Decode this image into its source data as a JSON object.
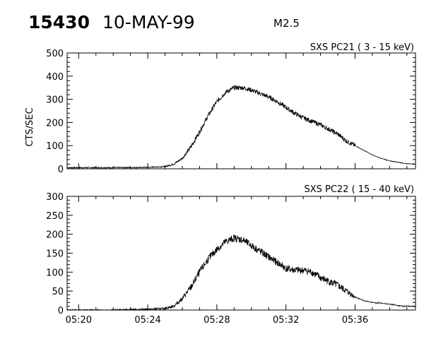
{
  "header": {
    "event_id": "15430",
    "date": "10-MAY-99",
    "flare_class": "M2.5"
  },
  "chart_data": [
    {
      "type": "line",
      "title": "SXS PC21  (  3 - 15 keV)",
      "ylabel": "CTS/SEC",
      "xlabel": "",
      "x_range": [
        "05:19:20",
        "05:39:30"
      ],
      "ylim": [
        0,
        500
      ],
      "y_ticks": [
        0,
        100,
        200,
        300,
        400,
        500
      ],
      "x_ticks": [
        "05:20",
        "05:24",
        "05:28",
        "05:32",
        "05:36"
      ],
      "noise_amplitude_dense_segment": 20,
      "dense_segment_end": "05:36:00",
      "series": [
        {
          "x": [
            "05:19:20",
            "05:20:00",
            "05:22:00",
            "05:24:00",
            "05:25:00",
            "05:25:30",
            "05:26:00",
            "05:26:30",
            "05:27:00",
            "05:27:30",
            "05:28:00",
            "05:28:30",
            "05:29:00",
            "05:29:30",
            "05:30:00",
            "05:30:30",
            "05:31:00",
            "05:31:30",
            "05:32:00",
            "05:32:30",
            "05:33:00",
            "05:33:30",
            "05:34:00",
            "05:34:30",
            "05:35:00",
            "05:35:30",
            "05:36:00",
            "05:36:30",
            "05:37:00",
            "05:37:30",
            "05:38:00",
            "05:38:30",
            "05:39:00",
            "05:39:30"
          ],
          "y": [
            5,
            5,
            5,
            6,
            10,
            20,
            45,
            95,
            160,
            230,
            290,
            330,
            350,
            350,
            340,
            325,
            310,
            290,
            265,
            240,
            220,
            205,
            190,
            170,
            150,
            120,
            100,
            80,
            60,
            45,
            35,
            28,
            22,
            20
          ]
        }
      ]
    },
    {
      "type": "line",
      "title": "SXS PC22  ( 15 - 40 keV)",
      "ylabel": "",
      "xlabel": "",
      "x_range": [
        "05:19:20",
        "05:39:30"
      ],
      "ylim": [
        0,
        300
      ],
      "y_ticks": [
        0,
        50,
        100,
        150,
        200,
        250,
        300
      ],
      "x_ticks": [
        "05:20",
        "05:24",
        "05:28",
        "05:32",
        "05:36"
      ],
      "noise_amplitude_dense_segment": 20,
      "dense_segment_end": "05:36:00",
      "series": [
        {
          "x": [
            "05:19:20",
            "05:20:00",
            "05:22:00",
            "05:24:00",
            "05:25:00",
            "05:25:30",
            "05:26:00",
            "05:26:30",
            "05:27:00",
            "05:27:30",
            "05:28:00",
            "05:28:30",
            "05:29:00",
            "05:29:30",
            "05:30:00",
            "05:30:30",
            "05:31:00",
            "05:31:30",
            "05:32:00",
            "05:32:30",
            "05:33:00",
            "05:33:30",
            "05:34:00",
            "05:34:30",
            "05:35:00",
            "05:35:30",
            "05:36:00",
            "05:36:30",
            "05:37:00",
            "05:37:30",
            "05:38:00",
            "05:38:30",
            "05:39:00",
            "05:39:30"
          ],
          "y": [
            0,
            0,
            0,
            2,
            4,
            10,
            30,
            60,
            100,
            135,
            160,
            180,
            190,
            185,
            170,
            155,
            140,
            125,
            110,
            105,
            105,
            100,
            85,
            75,
            65,
            50,
            35,
            25,
            20,
            18,
            15,
            12,
            10,
            10
          ]
        }
      ]
    }
  ]
}
